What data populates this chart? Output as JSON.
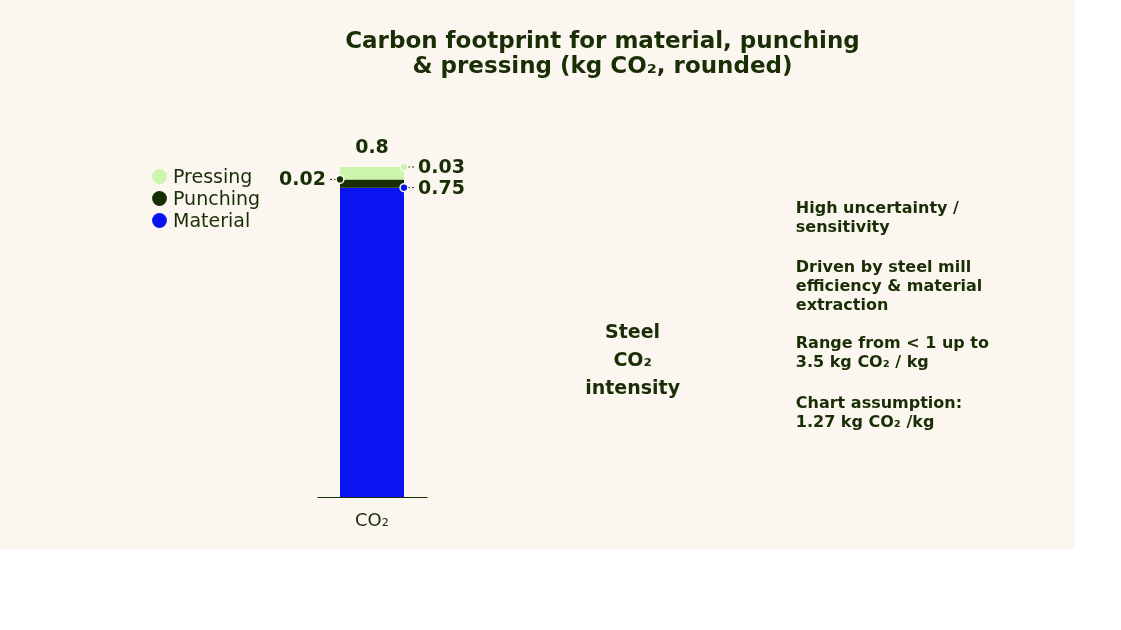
{
  "chart_data": {
    "type": "bar",
    "title": "Carbon footprint for material, punching\n& pressing (kg CO₂, rounded)",
    "categories": [
      "CO₂"
    ],
    "stacked": true,
    "data_labels": true,
    "totals": [
      "0.8"
    ],
    "legend": "left",
    "series": [
      {
        "name": "Material",
        "color": "#0a14f0",
        "values": [
          0.75
        ]
      },
      {
        "name": "Punching",
        "color": "#1a2e05",
        "values": [
          0.02
        ]
      },
      {
        "name": "Pressing",
        "color": "#ccf5ac",
        "values": [
          0.03
        ]
      }
    ],
    "annotations": [
      "Steel\nCO₂\nintensity",
      "High uncertainty /\nsensitivity",
      "Driven by steel mill\nefficiency & material\nextraction",
      "Range from < 1 up to\n3.5 kg CO₂ / kg",
      "Chart assumption:\n1.27 kg CO₂ /kg"
    ]
  }
}
